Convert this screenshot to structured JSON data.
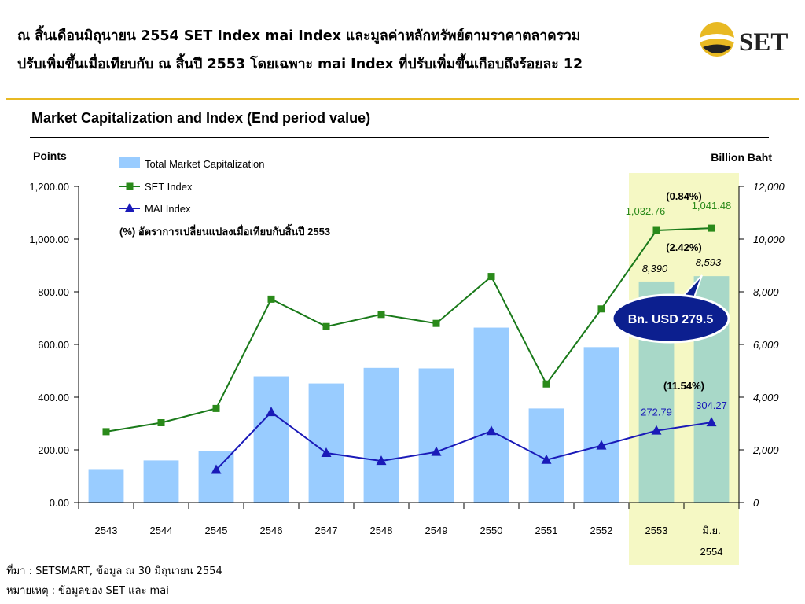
{
  "header": {
    "line1": "ณ สิ้นเดือนมิถุนายน 2554 SET Index mai Index และมูลค่าหลักทรัพย์ตามราคาตลาดรวม",
    "line2": "ปรับเพิ่มขึ้นเมื่อเทียบกับ ณ สิ้นปี 2553 โดยเฉพาะ mai Index ที่ปรับเพิ่มขึ้นเกือบถึงร้อยละ 12",
    "logo_text": "SET"
  },
  "colors": {
    "gold": "#e8b923",
    "bar": "#99ccff",
    "bar_highlight": "#a8d8c8",
    "highlight_band": "#f5f8c4",
    "set_line": "#1a7a1a",
    "set_marker": "#2a8a1a",
    "mai_line": "#1a1ab8",
    "callout": "#0c1f8f"
  },
  "chart_data": {
    "type": "bar",
    "title": "Market Capitalization and Index (End period value)",
    "left_axis_label": "Points",
    "right_axis_label": "Billion Baht",
    "categories": [
      "2543",
      "2544",
      "2545",
      "2546",
      "2547",
      "2548",
      "2549",
      "2550",
      "2551",
      "2552",
      "2553",
      "มิ.ย."
    ],
    "category_sublabels": {
      "11": "2554"
    },
    "left_ylim": [
      0,
      1200
    ],
    "right_ylim": [
      0,
      12000
    ],
    "left_ticks": [
      "0.00",
      "200.00",
      "400.00",
      "600.00",
      "800.00",
      "1,000.00",
      "1,200.00"
    ],
    "right_ticks": [
      "0",
      "2,000",
      "4,000",
      "6,000",
      "8,000",
      "10,000",
      "12,000"
    ],
    "series": [
      {
        "name": "Total Market Capitalization",
        "type": "bar",
        "axis": "right",
        "values": [
          1270,
          1600,
          1970,
          4790,
          4520,
          5110,
          5090,
          6640,
          3570,
          5900,
          8390,
          8593
        ]
      },
      {
        "name": "SET Index",
        "type": "line",
        "axis": "left",
        "marker": "square",
        "values": [
          269,
          303,
          357,
          772,
          668,
          714,
          680,
          858,
          450,
          735,
          1032.76,
          1041.48
        ]
      },
      {
        "name": "MAI Index",
        "type": "line",
        "axis": "left",
        "marker": "triangle",
        "values": [
          null,
          null,
          124,
          343,
          188,
          158,
          192,
          271,
          162,
          216,
          272.79,
          304.27
        ]
      }
    ],
    "highlight_categories": [
      10,
      11
    ],
    "data_labels": {
      "set": [
        "1,032.76",
        "1,041.48"
      ],
      "mai": [
        "272.79",
        "304.27"
      ],
      "cap": [
        "8,390",
        "8,593"
      ]
    },
    "pct_change": {
      "set": "(0.84%)",
      "cap": "(2.42%)",
      "mai": "(11.54%)"
    },
    "pct_note": "(%)  อัตราการเปลี่ยนแปลงเมื่อเทียบกับสิ้นปี 2553",
    "callout": "Bn. USD 279.5",
    "grid": false,
    "legend_position": "top-left"
  },
  "footer": {
    "source": "ที่มา : SETSMART, ข้อมูล ณ 30 มิถุนายน 2554",
    "note": "หมายเหตุ : ข้อมูลของ SET และ mai"
  }
}
